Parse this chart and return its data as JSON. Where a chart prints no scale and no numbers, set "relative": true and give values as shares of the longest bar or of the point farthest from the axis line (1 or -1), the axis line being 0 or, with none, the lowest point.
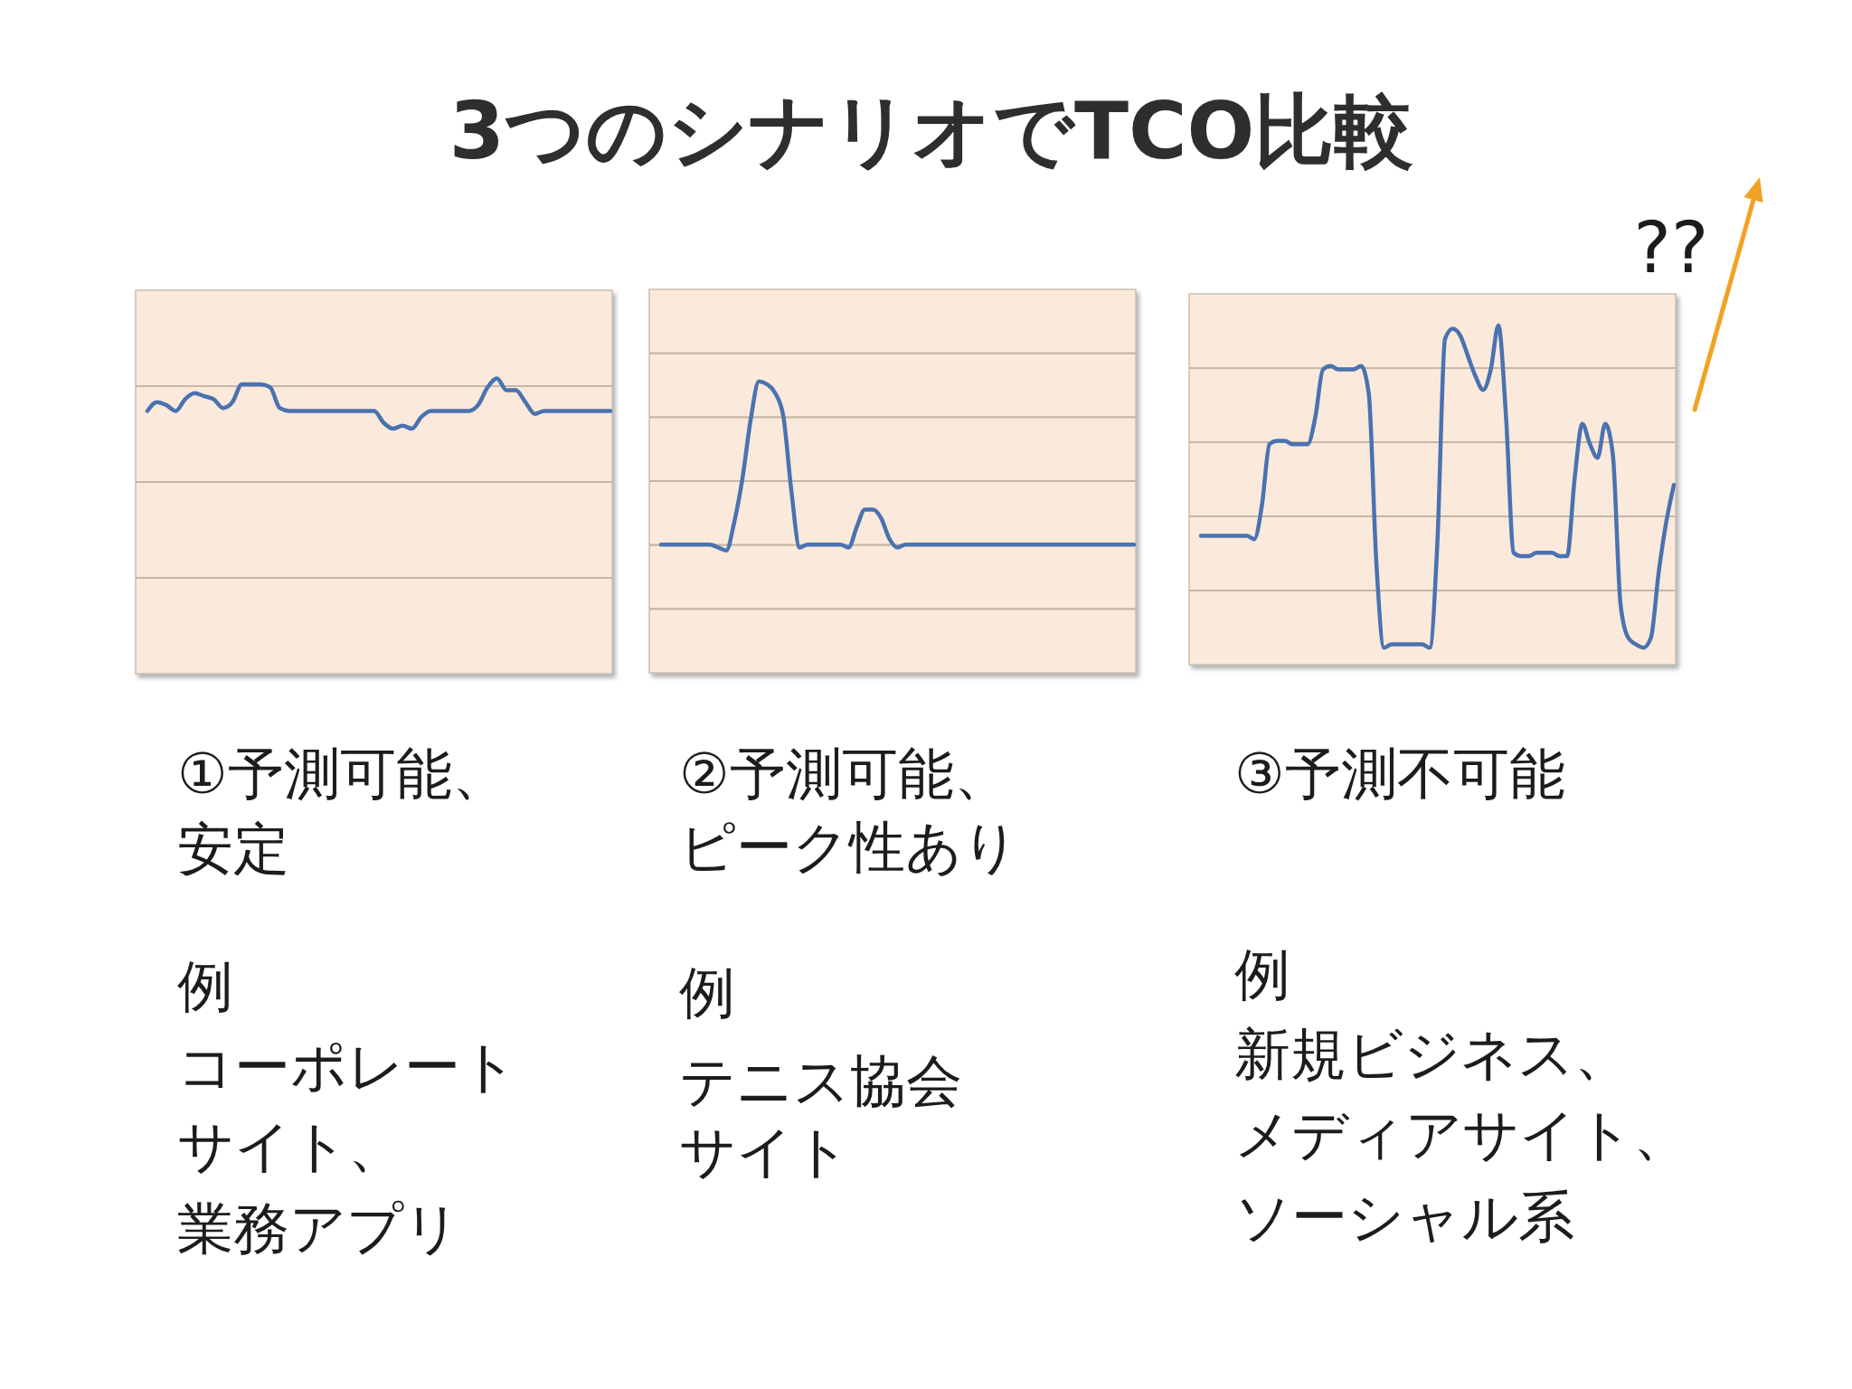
{
  "chart_data": [
    {
      "type": "line",
      "relative": true,
      "grid": true,
      "color": "#4a72b0",
      "xlabel": "①予測可能、安定",
      "annotations": [
        "例",
        "コーポレート",
        "サイト、",
        "業務アプリ"
      ],
      "categories": [
        null,
        null,
        null,
        null,
        null,
        null,
        null,
        null,
        null,
        null,
        null,
        null,
        null,
        null,
        null,
        null,
        null,
        null,
        null,
        null,
        null,
        null,
        null,
        null,
        null,
        null,
        null,
        null,
        null,
        null,
        null,
        null,
        null,
        null,
        null,
        null,
        null,
        null,
        null,
        null,
        null,
        null,
        null,
        null,
        null,
        null,
        null,
        null,
        null,
        null
      ],
      "values": [
        0.89,
        0.92,
        0.91,
        0.89,
        0.93,
        0.95,
        0.94,
        0.93,
        0.9,
        0.92,
        0.98,
        0.98,
        0.98,
        0.97,
        0.9,
        0.89,
        0.89,
        0.89,
        0.89,
        0.89,
        0.89,
        0.89,
        0.89,
        0.89,
        0.89,
        0.85,
        0.83,
        0.84,
        0.83,
        0.87,
        0.89,
        0.89,
        0.89,
        0.89,
        0.89,
        0.91,
        0.97,
        1.0,
        0.96,
        0.96,
        0.92,
        0.88,
        0.89,
        0.89,
        0.89,
        0.89,
        0.89,
        0.89,
        0.89,
        0.89
      ]
    },
    {
      "type": "line",
      "relative": true,
      "grid": true,
      "color": "#4a72b0",
      "title": "3つのシナリオでTCO比較",
      "xlabel": "②予測可能、ピーク性あり",
      "annotations": [
        "例",
        "テニス協会",
        "サイト"
      ],
      "categories": [
        null,
        null,
        null,
        null,
        null,
        null,
        null,
        null,
        null,
        null,
        null,
        null,
        null,
        null,
        null,
        null,
        null,
        null,
        null,
        null,
        null,
        null,
        null,
        null,
        null,
        null,
        null,
        null,
        null,
        null,
        null,
        null,
        null,
        null,
        null,
        null,
        null,
        null,
        null,
        null,
        null,
        null,
        null,
        null,
        null,
        null,
        null,
        null,
        null,
        null,
        null,
        null,
        null,
        null,
        null,
        null,
        null,
        null,
        null
      ],
      "values": [
        0.44,
        0.44,
        0.44,
        0.44,
        0.44,
        0.44,
        0.44,
        0.43,
        0.42,
        0.52,
        0.67,
        0.87,
        1.0,
        0.99,
        0.96,
        0.88,
        0.62,
        0.43,
        0.44,
        0.44,
        0.44,
        0.44,
        0.44,
        0.43,
        0.5,
        0.56,
        0.56,
        0.53,
        0.46,
        0.43,
        0.44,
        0.44,
        0.44,
        0.44,
        0.44,
        0.44,
        0.44,
        0.44,
        0.44,
        0.44,
        0.44,
        0.44,
        0.44,
        0.44,
        0.44,
        0.44,
        0.44,
        0.44,
        0.44,
        0.44,
        0.44,
        0.44,
        0.44,
        0.44,
        0.44,
        0.44,
        0.44,
        0.44,
        0.44
      ]
    },
    {
      "type": "line",
      "relative": true,
      "grid": true,
      "color": "#4a72b0",
      "xlabel": "③予測不可能",
      "annotations": [
        "??",
        "例",
        "新規ビジネス、",
        "メディアサイト、",
        "ソーシャル系"
      ],
      "categories": [
        null,
        null,
        null,
        null,
        null,
        null,
        null,
        null,
        null,
        null,
        null,
        null,
        null,
        null,
        null,
        null,
        null,
        null,
        null,
        null,
        null,
        null,
        null,
        null,
        null,
        null,
        null,
        null,
        null,
        null,
        null,
        null,
        null,
        null,
        null,
        null,
        null,
        null,
        null,
        null,
        null,
        null,
        null,
        null,
        null,
        null,
        null,
        null,
        null,
        null,
        null,
        null,
        null,
        null,
        null,
        null,
        null,
        null,
        null,
        null,
        null,
        null,
        null
      ],
      "values": [
        0.38,
        0.38,
        0.38,
        0.38,
        0.38,
        0.38,
        0.38,
        0.37,
        0.47,
        0.65,
        0.66,
        0.66,
        0.65,
        0.65,
        0.65,
        0.73,
        0.87,
        0.88,
        0.87,
        0.87,
        0.87,
        0.88,
        0.8,
        0.3,
        0.05,
        0.06,
        0.06,
        0.06,
        0.06,
        0.06,
        0.05,
        0.36,
        0.96,
        0.99,
        0.97,
        0.91,
        0.85,
        0.81,
        0.87,
        1.0,
        0.73,
        0.33,
        0.32,
        0.32,
        0.33,
        0.33,
        0.33,
        0.32,
        0.32,
        0.55,
        0.71,
        0.65,
        0.61,
        0.71,
        0.62,
        0.18,
        0.08,
        0.06,
        0.05,
        0.08,
        0.27,
        0.42,
        0.53
      ]
    }
  ]
}
